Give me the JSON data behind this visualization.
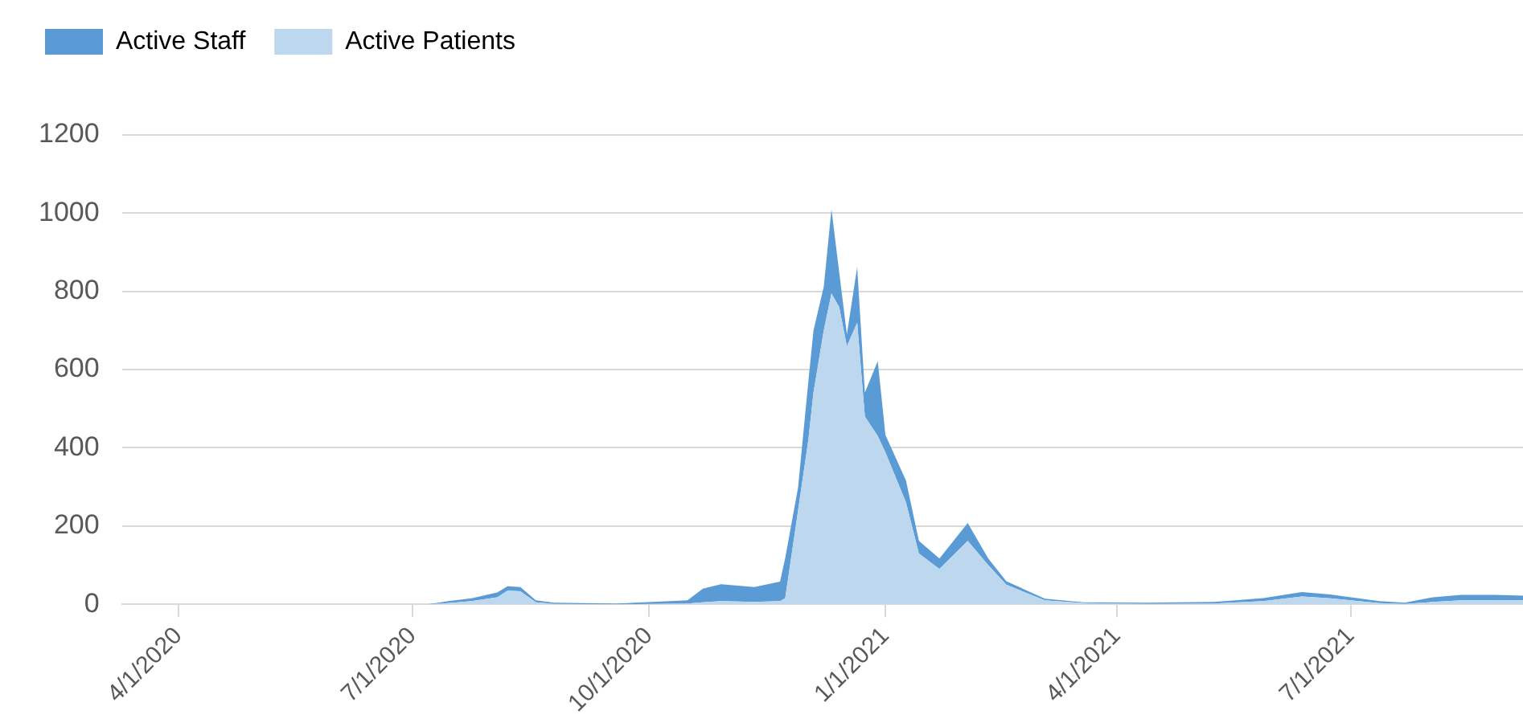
{
  "chart_data": {
    "type": "area",
    "stacked": true,
    "legend": "top left",
    "grid": "y",
    "marker": "none",
    "x": [
      "2020-07-07",
      "2020-07-15",
      "2020-07-24",
      "2020-08-03",
      "2020-08-07",
      "2020-08-12",
      "2020-08-18",
      "2020-08-25",
      "2020-09-16",
      "2020-09-19",
      "2020-10-16",
      "2020-10-22",
      "2020-10-29",
      "2020-11-11",
      "2020-11-21",
      "2020-11-23",
      "2020-11-28",
      "2020-12-02",
      "2020-12-04",
      "2020-12-08",
      "2020-12-11",
      "2020-12-14",
      "2020-12-17",
      "2020-12-21",
      "2020-12-24",
      "2020-12-29",
      "2021-01-01",
      "2021-01-09",
      "2021-01-14",
      "2021-01-22",
      "2021-02-02",
      "2021-02-10",
      "2021-02-17",
      "2021-03-04",
      "2021-03-19",
      "2021-04-13",
      "2021-05-09",
      "2021-05-28",
      "2021-06-12",
      "2021-06-23",
      "2021-07-12",
      "2021-07-22",
      "2021-08-02",
      "2021-08-13",
      "2021-08-26",
      "2021-09-06"
    ],
    "series": [
      {
        "name": "Active Patients",
        "color": "#bdd7ee",
        "values": [
          0,
          3,
          8,
          18,
          35,
          33,
          5,
          1,
          0,
          0,
          2,
          5,
          8,
          6,
          8,
          15,
          239,
          420,
          541,
          700,
          795,
          760,
          660,
          720,
          480,
          430,
          388,
          260,
          130,
          90,
          162,
          100,
          50,
          10,
          3,
          1,
          2,
          8,
          20,
          15,
          3,
          1,
          6,
          10,
          10,
          10
        ]
      },
      {
        "name": "Active Staff",
        "color": "#5b9bd5",
        "values": [
          0,
          5,
          7,
          12,
          11,
          11,
          5,
          3,
          2,
          2,
          8,
          35,
          43,
          38,
          50,
          103,
          59,
          149,
          159,
          112,
          215,
          90,
          30,
          142,
          61,
          192,
          45,
          56,
          32,
          27,
          46,
          17,
          9,
          4,
          2,
          3,
          4,
          8,
          11,
          10,
          5,
          3,
          12,
          14,
          14,
          12
        ]
      }
    ],
    "xlim": [
      "2020-03-10",
      "2021-09-06"
    ],
    "xticks": [
      {
        "value": "2020-04-01",
        "label": "4/1/2020"
      },
      {
        "value": "2020-07-01",
        "label": "7/1/2020"
      },
      {
        "value": "2020-10-01",
        "label": "10/1/2020"
      },
      {
        "value": "2021-01-01",
        "label": "1/1/2021"
      },
      {
        "value": "2021-04-01",
        "label": "4/1/2021"
      },
      {
        "value": "2021-07-01",
        "label": "7/1/2021"
      }
    ],
    "ylim": [
      0,
      1200
    ],
    "yticks": [
      0,
      200,
      400,
      600,
      800,
      1000,
      1200
    ]
  }
}
